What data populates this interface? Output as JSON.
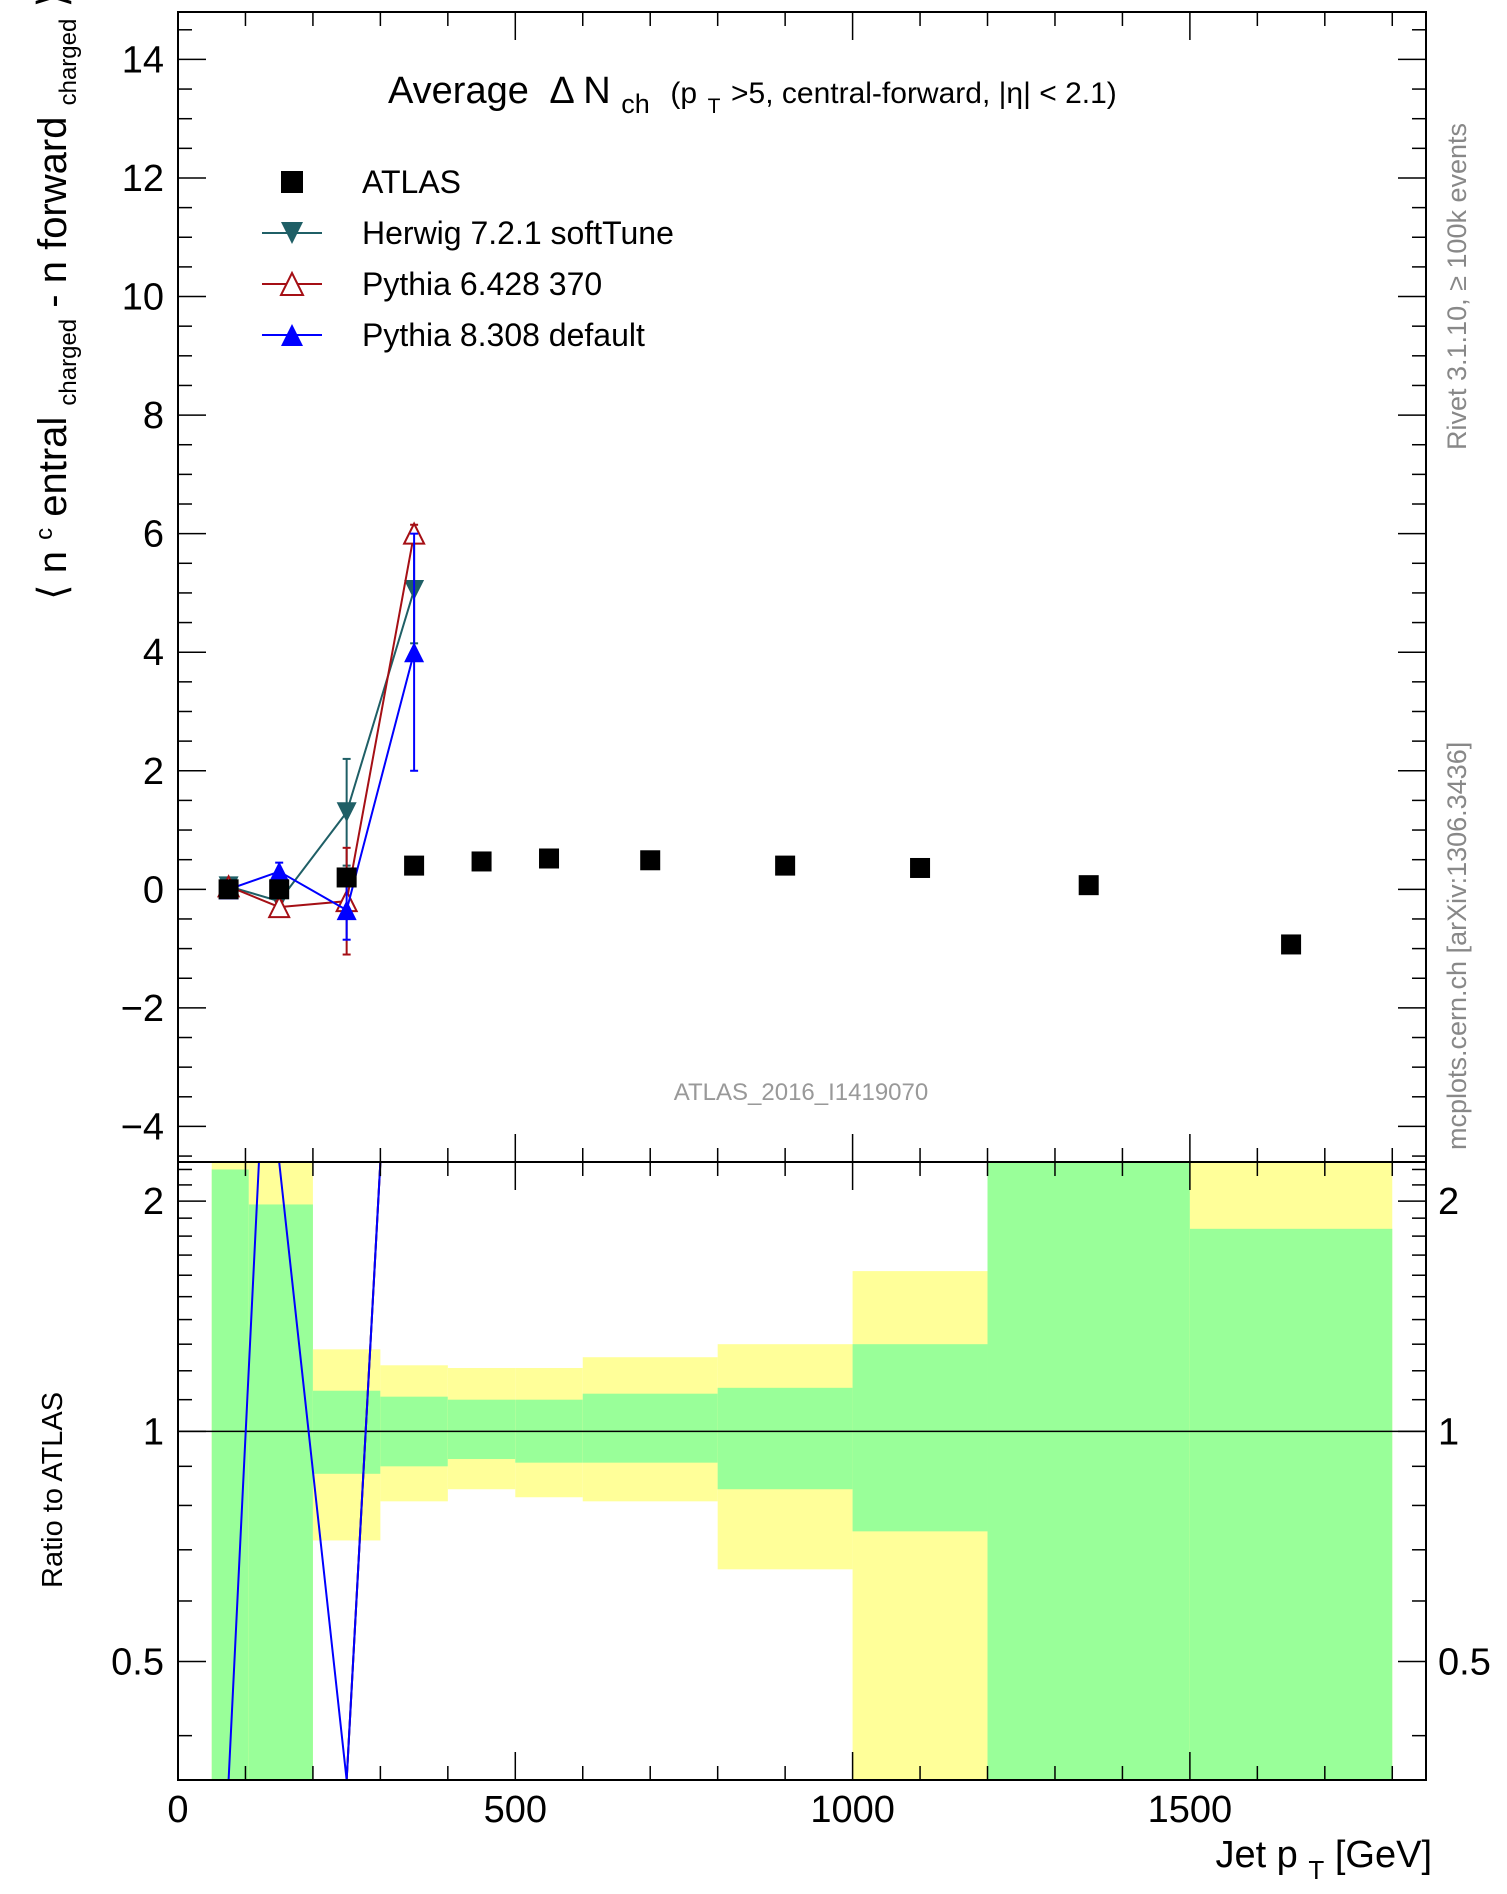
{
  "chart_data": [
    {
      "type": "scatter",
      "title": "Average",
      "title_delta": "Δ N",
      "title_sub": "ch",
      "title_rest": "(p",
      "title_rest_sub": "T",
      "title_rest_tail": ">5, central-forward, |η| < 2.1)",
      "analysis_tag": "ATLAS_2016_I1419070",
      "ylabel_open": "⟨ n",
      "ylabel_sup": "c",
      "ylabel_mid": "entral",
      "ylabel_sub1": "charged",
      "ylabel_dash": " - n",
      "ylabel_mid2": "forward",
      "ylabel_sub2": "charged",
      "ylabel_close": "⟩",
      "xlim": [
        0,
        1850
      ],
      "ylim": [
        -4.6,
        14.8
      ],
      "yticks": [
        -4,
        -2,
        0,
        2,
        4,
        6,
        8,
        10,
        12,
        14
      ],
      "ytick_labels": [
        "−4",
        "−2",
        "0",
        "2",
        "4",
        "6",
        "8",
        "10",
        "12",
        "14"
      ],
      "grid": false,
      "legend_position": "top-left",
      "series": [
        {
          "name": "ATLAS",
          "color": "#000000",
          "marker": "square",
          "x": [
            75,
            150,
            250,
            350,
            450,
            550,
            700,
            900,
            1100,
            1350,
            1650
          ],
          "y": [
            0.0,
            0.0,
            0.2,
            0.4,
            0.47,
            0.52,
            0.49,
            0.4,
            0.36,
            0.07,
            -0.93
          ]
        },
        {
          "name": "Herwig 7.2.1 softTune",
          "color": "#1f5f66",
          "marker": "triangle-down",
          "x": [
            75,
            150,
            250,
            350
          ],
          "y": [
            0.05,
            -0.2,
            1.3,
            5.05
          ],
          "yerr": [
            0.08,
            0.15,
            0.9,
            0.9
          ]
        },
        {
          "name": "Pythia 6.428 370",
          "color": "#a50f15",
          "marker": "triangle-up-open",
          "x": [
            75,
            150,
            250,
            350
          ],
          "y": [
            0.05,
            -0.3,
            -0.2,
            6.0
          ],
          "yerr": [
            0.08,
            0.1,
            0.9,
            0.15
          ]
        },
        {
          "name": "Pythia 8.308 default",
          "color": "#0000ff",
          "marker": "triangle-up",
          "x": [
            75,
            150,
            250,
            350
          ],
          "y": [
            0.0,
            0.3,
            -0.35,
            4.0
          ],
          "yerr": [
            0.08,
            0.15,
            0.5,
            2.0
          ]
        }
      ]
    },
    {
      "type": "area",
      "ylabel": "Ratio to ATLAS",
      "xlabel": "Jet p",
      "xlabel_sub": "T",
      "xlabel_unit": " [GeV]",
      "xlim": [
        0,
        1850
      ],
      "ylim": [
        0.35,
        2.25
      ],
      "xticks": [
        0,
        500,
        1000,
        1500
      ],
      "yticks": [
        0.5,
        1,
        2
      ],
      "ytick_labels": [
        "0.5",
        "1",
        "2"
      ],
      "reference_line": 1,
      "bands": [
        {
          "x": [
            50,
            105
          ],
          "stat": [
            0.35,
            2.2
          ],
          "total": [
            0.35,
            2.25
          ]
        },
        {
          "x": [
            105,
            200
          ],
          "stat": [
            0.35,
            1.98
          ],
          "total": [
            0.35,
            2.25
          ]
        },
        {
          "x": [
            200,
            300
          ],
          "stat": [
            0.88,
            1.13
          ],
          "total": [
            0.72,
            1.28
          ]
        },
        {
          "x": [
            300,
            400
          ],
          "stat": [
            0.9,
            1.11
          ],
          "total": [
            0.81,
            1.22
          ]
        },
        {
          "x": [
            400,
            500
          ],
          "stat": [
            0.92,
            1.1
          ],
          "total": [
            0.84,
            1.21
          ]
        },
        {
          "x": [
            500,
            600
          ],
          "stat": [
            0.91,
            1.1
          ],
          "total": [
            0.82,
            1.21
          ]
        },
        {
          "x": [
            600,
            800
          ],
          "stat": [
            0.91,
            1.12
          ],
          "total": [
            0.81,
            1.25
          ]
        },
        {
          "x": [
            800,
            1000
          ],
          "stat": [
            0.84,
            1.14
          ],
          "total": [
            0.66,
            1.3
          ]
        },
        {
          "x": [
            1000,
            1200
          ],
          "stat": [
            0.74,
            1.3
          ],
          "total": [
            0.35,
            1.62
          ]
        },
        {
          "x": [
            1200,
            1500
          ],
          "stat": [
            0.35,
            2.25
          ],
          "total": [
            0.35,
            2.25
          ]
        },
        {
          "x": [
            1500,
            1800
          ],
          "stat": [
            0.35,
            1.84
          ],
          "total": [
            0.35,
            2.25
          ]
        }
      ],
      "band_colors": {
        "stat": "#99ff99",
        "total": "#ffff99"
      },
      "ratio_series": [
        {
          "name": "Herwig 7.2.1 softTune",
          "color": "#1f5f66",
          "x": [
            150,
            250,
            300
          ],
          "y": [
            0.35,
            0.35,
            2.25
          ]
        },
        {
          "name": "Pythia 6.428 370",
          "color": "#a50f15",
          "x": [
            250,
            300
          ],
          "y": [
            0.35,
            2.25
          ]
        },
        {
          "name": "Pythia 8.308 default",
          "color": "#0000ff",
          "x": [
            75,
            120,
            150,
            250,
            300
          ],
          "y": [
            0.35,
            2.25,
            2.25,
            0.35,
            2.25
          ]
        }
      ]
    }
  ],
  "side_text": {
    "rivet": "Rivet 3.1.10, ≥ 100k events",
    "mcplots": "mcplots.cern.ch [arXiv:1306.3436]"
  }
}
